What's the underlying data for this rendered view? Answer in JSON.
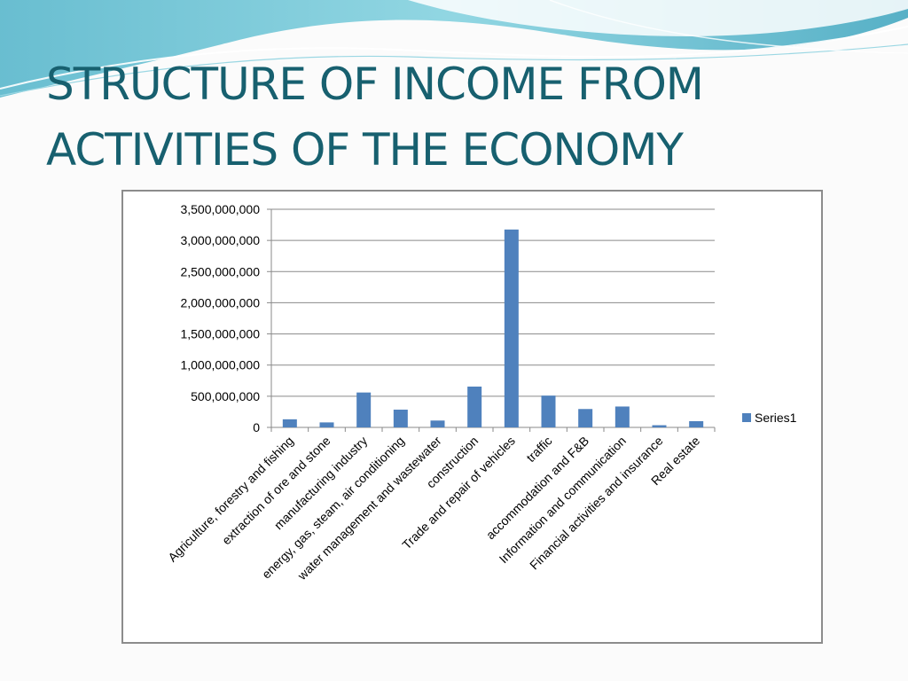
{
  "slide": {
    "title_line1": "STRUCTURE OF INCOME FROM",
    "title_line2": "ACTIVITIES OF THE ECONOMY",
    "accent_color": "#17606f"
  },
  "chart_data": {
    "type": "bar",
    "categories": [
      "Agriculture, forestry and fishing",
      "extraction of ore and stone",
      "manufacturing industry",
      "energy, gas, steam, air conditioning",
      "water management and wastewater",
      "construction",
      "Trade and repair of vehicles",
      "traffic",
      "accommodation and F&B",
      "Information and communication",
      "Financial activities and insurance",
      "Real estate"
    ],
    "series": [
      {
        "name": "Series1",
        "color": "#4f81bd",
        "values": [
          130000000,
          80000000,
          560000000,
          285000000,
          110000000,
          655000000,
          3175000000,
          510000000,
          295000000,
          335000000,
          35000000,
          100000000
        ]
      }
    ],
    "ylim": [
      0,
      3500000000
    ],
    "yticks": [
      "0",
      "500,000,000",
      "1,000,000,000",
      "1,500,000,000",
      "2,000,000,000",
      "2,500,000,000",
      "3,000,000,000",
      "3,500,000,000"
    ],
    "grid": true,
    "legend_position": "right"
  }
}
